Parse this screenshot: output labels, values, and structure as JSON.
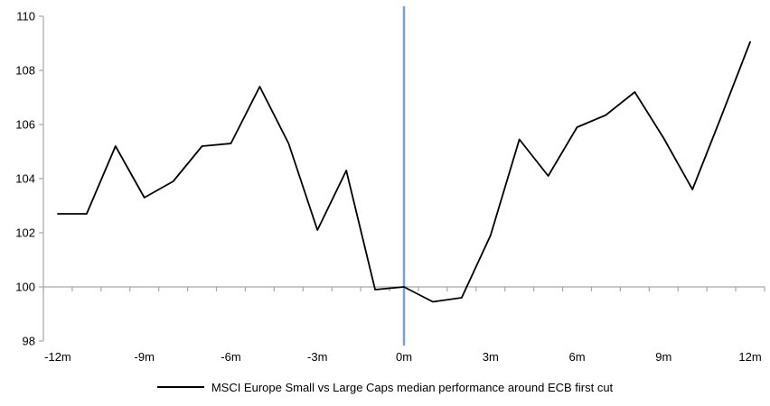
{
  "chart_data": {
    "type": "line",
    "title": "",
    "xlabel": "",
    "ylabel": "",
    "categories": [
      "-12m",
      "-11m",
      "-10m",
      "-9m",
      "-8m",
      "-7m",
      "-6m",
      "-5m",
      "-4m",
      "-3m",
      "-2m",
      "-1m",
      "0m",
      "1m",
      "2m",
      "3m",
      "4m",
      "5m",
      "6m",
      "7m",
      "8m",
      "9m",
      "10m",
      "11m",
      "12m"
    ],
    "series": [
      {
        "name": "MSCI Europe Small vs Large Caps median performance around ECB first cut",
        "color": "#000000",
        "values": [
          102.7,
          102.7,
          105.2,
          103.3,
          103.9,
          105.2,
          105.3,
          107.4,
          105.3,
          102.1,
          104.3,
          99.9,
          100.0,
          99.45,
          99.6,
          101.9,
          105.45,
          104.1,
          105.9,
          106.35,
          107.2,
          105.5,
          103.6,
          106.3,
          109.05
        ]
      }
    ],
    "ylim": [
      98,
      110
    ],
    "yticks": [
      110,
      108,
      106,
      104,
      102,
      100,
      98
    ],
    "xtick_label_every": 3,
    "visible_xtick_labels": [
      "-12m",
      "-9m",
      "-6m",
      "-3m",
      "0m",
      "3m",
      "6m",
      "9m",
      "12m"
    ],
    "axis_crosses_at": 100,
    "grid": false,
    "legend_position": "bottom",
    "event_marker": {
      "category": "0m",
      "color": "#74A3D2"
    }
  },
  "colors": {
    "axis": "#A6A6A6",
    "text": "#000000",
    "background": "#FFFFFF",
    "series_line": "#000000",
    "event_line": "#74A3D2"
  }
}
